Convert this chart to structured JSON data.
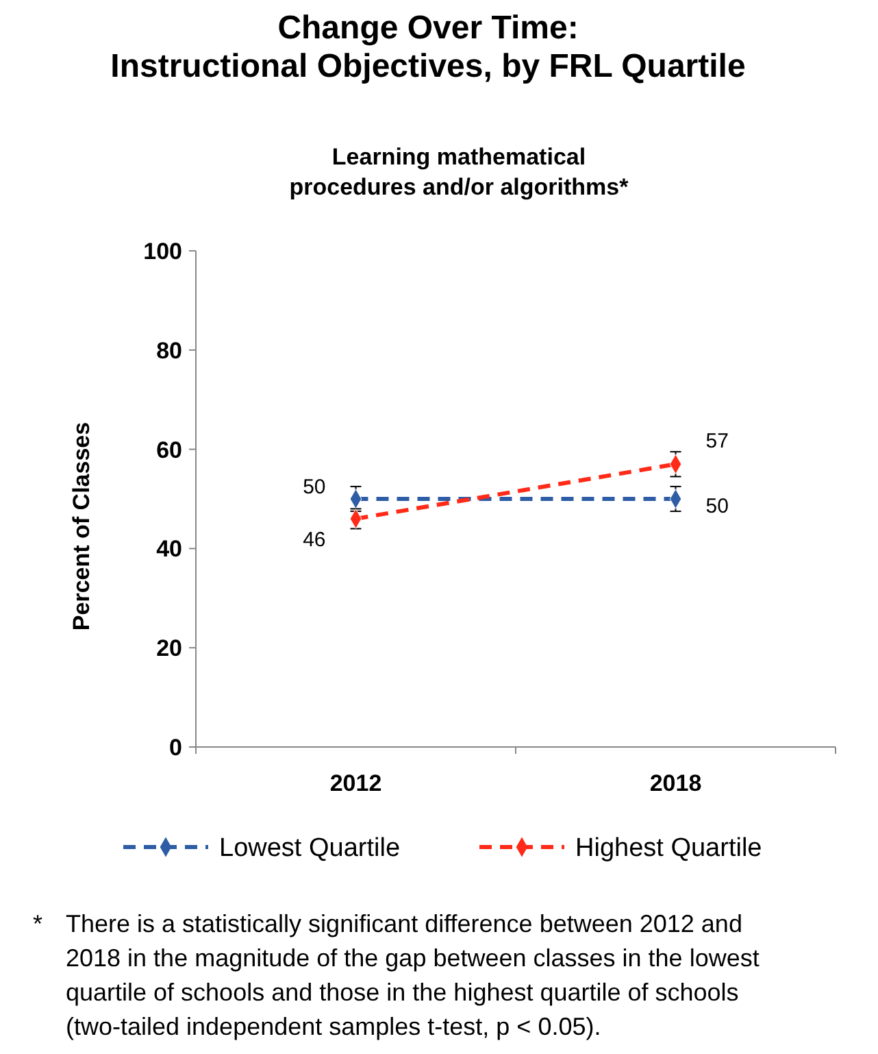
{
  "chart_data": {
    "type": "line",
    "title": "Change Over Time:\nInstructional Objectives, by FRL Quartile",
    "subtitle": "Learning mathematical\nprocedures and/or algorithms*",
    "ylabel": "Percent of Classes",
    "categories": [
      "2012",
      "2018"
    ],
    "series": [
      {
        "name": "Lowest Quartile",
        "color": "#2e5da6",
        "values": [
          50,
          50
        ],
        "errors": [
          2.5,
          2.5
        ]
      },
      {
        "name": "Highest Quartile",
        "color": "#ff2a17",
        "values": [
          46,
          57
        ],
        "errors": [
          2,
          2.5
        ]
      }
    ],
    "ylim": [
      0,
      100
    ],
    "yticks": [
      0,
      20,
      40,
      60,
      80,
      100
    ],
    "grid": false,
    "legend": "bottom",
    "marker": "diamond",
    "line_style": "dashed",
    "data_labels": true,
    "annotations": [
      "*\tThere is a statistically significant difference between 2012 and\n2018 in the magnitude of the gap between classes in the lowest\nquartile of schools and those in the highest quartile of schools\n(two-tailed independent samples t-test, p < 0.05)."
    ]
  }
}
